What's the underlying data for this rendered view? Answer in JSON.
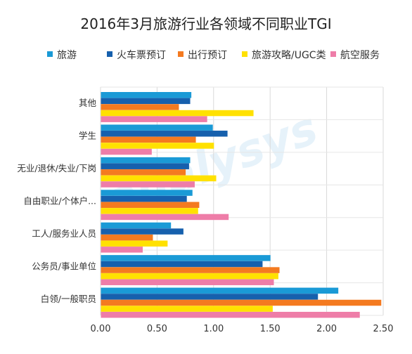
{
  "chart_data": {
    "type": "bar",
    "orientation": "horizontal",
    "title": "2016年3月旅游行业各领域不同职业TGI",
    "watermark": "analysys",
    "categories": [
      "其他",
      "学生",
      "无业/退休/失业/下岗",
      "自由职业/个体户...",
      "工人/服务业人员",
      "公务员/事业单位",
      "白领/一般职员"
    ],
    "series": [
      {
        "name": "旅游",
        "color": "#1a9ad6",
        "values": [
          0.8,
          0.99,
          0.79,
          0.81,
          0.62,
          1.5,
          2.1
        ]
      },
      {
        "name": "火车票预订",
        "color": "#1660ad",
        "values": [
          0.79,
          1.12,
          0.78,
          0.76,
          0.73,
          1.43,
          1.92
        ]
      },
      {
        "name": "出行预订",
        "color": "#f47a20",
        "values": [
          0.69,
          0.84,
          0.75,
          0.87,
          0.46,
          1.58,
          2.48
        ]
      },
      {
        "name": "旅游攻略/UGC类",
        "color": "#ffe100",
        "values": [
          1.35,
          1.0,
          1.02,
          0.86,
          0.59,
          1.57,
          1.52
        ]
      },
      {
        "name": "航空服务",
        "color": "#ee7da8",
        "values": [
          0.94,
          0.45,
          0.83,
          1.13,
          0.37,
          1.53,
          2.29
        ]
      }
    ],
    "xlim": [
      0,
      2.5
    ],
    "xticks": [
      "0.00",
      "0.50",
      "1.00",
      "1.50",
      "2.00",
      "2.50"
    ],
    "grid": true,
    "legend_position": "top"
  }
}
